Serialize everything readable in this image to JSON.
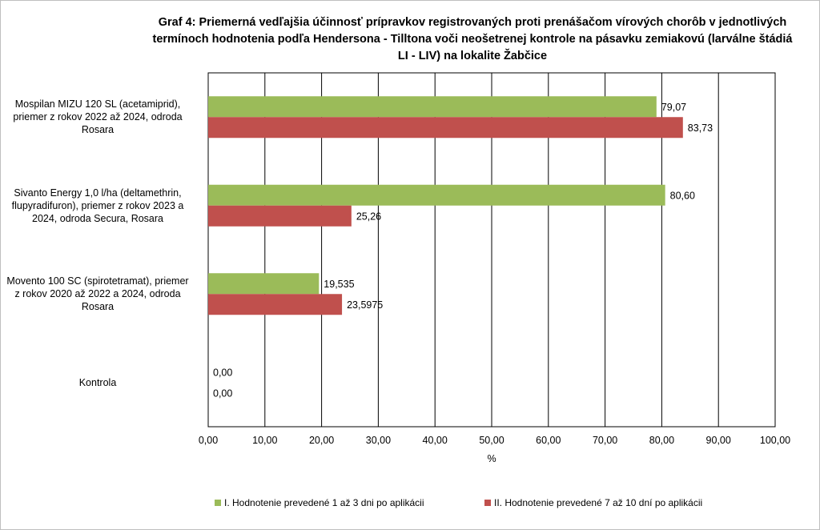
{
  "chart_data": {
    "type": "bar",
    "orientation": "horizontal",
    "title_lines": [
      "Graf 4: Priemerná vedľajšia účinnosť prípravkov registrovaných proti prenášačom vírových chorôb v jednotlivých",
      "termínoch hodnotenia podľa Hendersona - Tilltona voči neošetrenej kontrole na pásavku zemiakovú (larválne  štádiá",
      "LI - LIV) na lokalite Žabčice"
    ],
    "categories": [
      [
        "Mospilan MIZU 120 SL (acetamiprid),",
        "priemer z rokov 2022 až 2024, odroda",
        "Rosara"
      ],
      [
        "Sivanto Energy 1,0 l/ha (deltamethrin,",
        "flupyradifuron), priemer z rokov 2023 a",
        "2024, odroda Secura, Rosara"
      ],
      [
        "Movento 100 SC (spirotetramat), priemer",
        "z rokov 2020 až 2022 a 2024, odroda",
        "Rosara"
      ],
      [
        "Kontrola"
      ]
    ],
    "series": [
      {
        "name": "I. Hodnotenie prevedené 1 až 3 dni po aplikácii",
        "color": "#9bbb59",
        "values": [
          79.07,
          80.6,
          19.535,
          0.0
        ],
        "labels": [
          "79,07",
          "80,60",
          "19,535",
          "0,00"
        ]
      },
      {
        "name": "II. Hodnotenie prevedené 7 až 10 dní po aplikácii",
        "color": "#c0504d",
        "values": [
          83.73,
          25.26,
          23.5975,
          0.0
        ],
        "labels": [
          "83,73",
          "25,26",
          "23,5975",
          "0,00"
        ]
      }
    ],
    "xlabel": "%",
    "xlim": [
      0,
      100
    ],
    "xticks": [
      "0,00",
      "10,00",
      "20,00",
      "30,00",
      "40,00",
      "50,00",
      "60,00",
      "70,00",
      "80,00",
      "90,00",
      "100,00"
    ],
    "grid": true,
    "legend_position": "bottom"
  }
}
